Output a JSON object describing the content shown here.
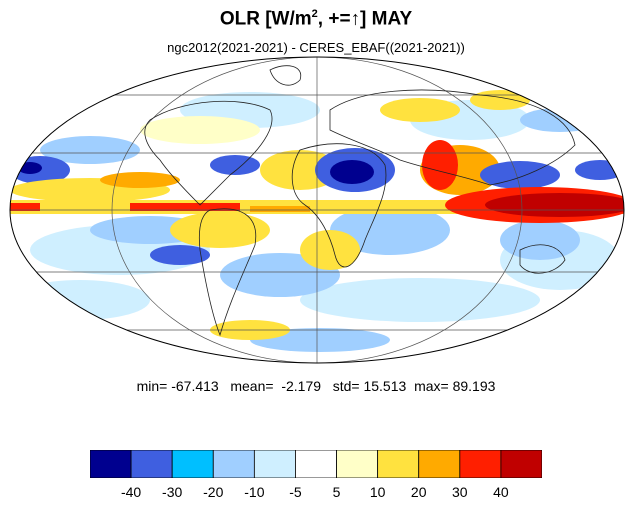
{
  "title": {
    "main": "OLR [W/m",
    "sup": "2",
    "rest": ", +=↑] MAY"
  },
  "subtitle": "ngc2012(2021-2021) - CERES_EBAF((2021-2021))",
  "stats": {
    "min_label": "min=",
    "min": "-67.413",
    "mean_label": "mean=",
    "mean": "-2.179",
    "std_label": "std=",
    "std": "15.513",
    "max_label": "max=",
    "max": "89.193"
  },
  "map": {
    "projection": "mollweide",
    "variable": "OLR difference",
    "month": "MAY"
  },
  "colorbar": {
    "colors": [
      "#00008f",
      "#3f5fe0",
      "#00bfff",
      "#a0cfff",
      "#cfefff",
      "#ffffff",
      "#ffffc8",
      "#ffe23f",
      "#ffaa00",
      "#ff1f00",
      "#c00000"
    ],
    "labels": [
      "-40",
      "-30",
      "-20",
      "-10",
      "-5",
      "5",
      "10",
      "20",
      "30",
      "40"
    ]
  }
}
